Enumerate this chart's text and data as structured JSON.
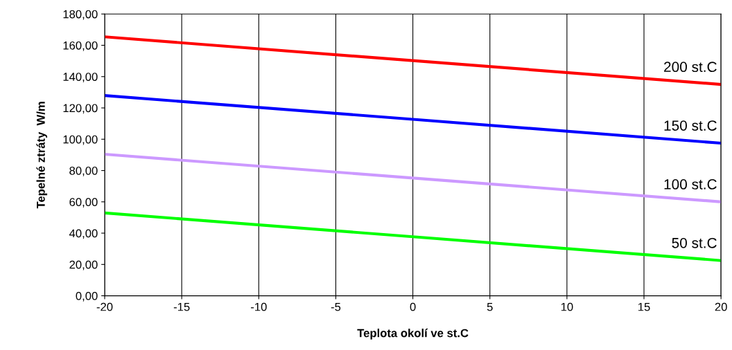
{
  "chart_data": {
    "type": "line",
    "xlabel": "Teplota okolí ve st.C",
    "ylabel": "Tepelné ztráty  W/m",
    "x": [
      -20,
      0,
      20
    ],
    "series": [
      {
        "name": "200 st.C",
        "color": "#ff0000",
        "values": [
          165.4,
          150.2,
          135.0
        ]
      },
      {
        "name": "150 st.C",
        "color": "#0000ff",
        "values": [
          127.9,
          112.7,
          97.5
        ]
      },
      {
        "name": "100 st.C",
        "color": "#cc99ff",
        "values": [
          90.4,
          75.2,
          60.0
        ]
      },
      {
        "name": "50 st.C",
        "color": "#00ff00",
        "values": [
          52.9,
          37.7,
          22.5
        ]
      }
    ],
    "xlim": [
      -20,
      20
    ],
    "xticks": [
      -20,
      -15,
      -10,
      -5,
      0,
      5,
      10,
      15,
      20
    ],
    "ylim": [
      0,
      180
    ],
    "yticks": [
      {
        "value": 0,
        "label": "0,00"
      },
      {
        "value": 20,
        "label": "20,00"
      },
      {
        "value": 40,
        "label": "40,00"
      },
      {
        "value": 60,
        "label": "60,00"
      },
      {
        "value": 80,
        "label": "80,00"
      },
      {
        "value": 100,
        "label": "100,00"
      },
      {
        "value": 120,
        "label": "120,00"
      },
      {
        "value": 140,
        "label": "140,00"
      },
      {
        "value": 160,
        "label": "160,00"
      },
      {
        "value": 180,
        "label": "180,00"
      }
    ],
    "grid": "x",
    "legend": false,
    "marker": "none",
    "line_style": "solid"
  }
}
